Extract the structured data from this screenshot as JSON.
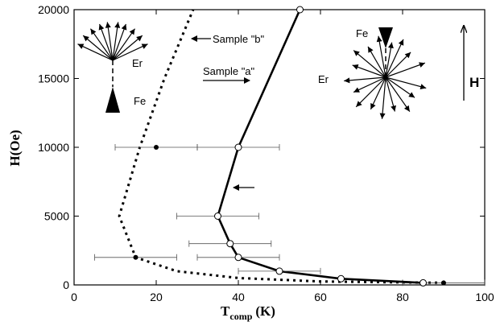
{
  "chart_data": {
    "type": "line",
    "xlim": [
      0,
      100
    ],
    "ylim": [
      0,
      20000
    ],
    "x_ticks": [
      "0",
      "20",
      "40",
      "60",
      "80",
      "100"
    ],
    "y_ticks": [
      "0",
      "5000",
      "10000",
      "15000",
      "20000"
    ],
    "xlabel_main": "T",
    "xlabel_sub": "comp",
    "xlabel_unit": "(K)",
    "ylabel": "H(Oe)",
    "series": [
      {
        "name": "Sample \"a\"",
        "style": "solid-open-circles",
        "color": "#000000",
        "points": [
          {
            "x": 85,
            "y": 150,
            "xerr": 0
          },
          {
            "x": 65,
            "y": 450,
            "xerr": 0
          },
          {
            "x": 50,
            "y": 1000,
            "xerr": 5
          },
          {
            "x": 40,
            "y": 2000,
            "xerr": 5
          },
          {
            "x": 38,
            "y": 3000,
            "xerr": 5
          },
          {
            "x": 35,
            "y": 5000,
            "xerr": 5
          },
          {
            "x": 40,
            "y": 10000,
            "xerr": 5
          },
          {
            "x": 55,
            "y": 20000,
            "xerr": 0
          }
        ]
      },
      {
        "name": "Sample \"b\"",
        "style": "dotted-filled-circles",
        "color": "#000000",
        "markers": [
          {
            "x": 90,
            "y": 150,
            "xerr": 5
          },
          {
            "x": 15,
            "y": 2000,
            "xerr": 5
          },
          {
            "x": 20,
            "y": 10000,
            "xerr": 5
          }
        ],
        "curve": [
          {
            "x": 90,
            "y": 150
          },
          {
            "x": 60,
            "y": 250
          },
          {
            "x": 40,
            "y": 500
          },
          {
            "x": 25,
            "y": 1000
          },
          {
            "x": 15,
            "y": 2000
          },
          {
            "x": 11,
            "y": 5000
          },
          {
            "x": 16,
            "y": 10000
          },
          {
            "x": 22,
            "y": 15000
          },
          {
            "x": 29,
            "y": 20000
          }
        ]
      }
    ],
    "annotations": {
      "sample_b": "Sample \"b\"",
      "sample_a": "Sample \"a\"",
      "er_left": "Er",
      "fe_left": "Fe",
      "fe_right": "Fe",
      "er_right": "Er",
      "h_field": "H"
    }
  }
}
